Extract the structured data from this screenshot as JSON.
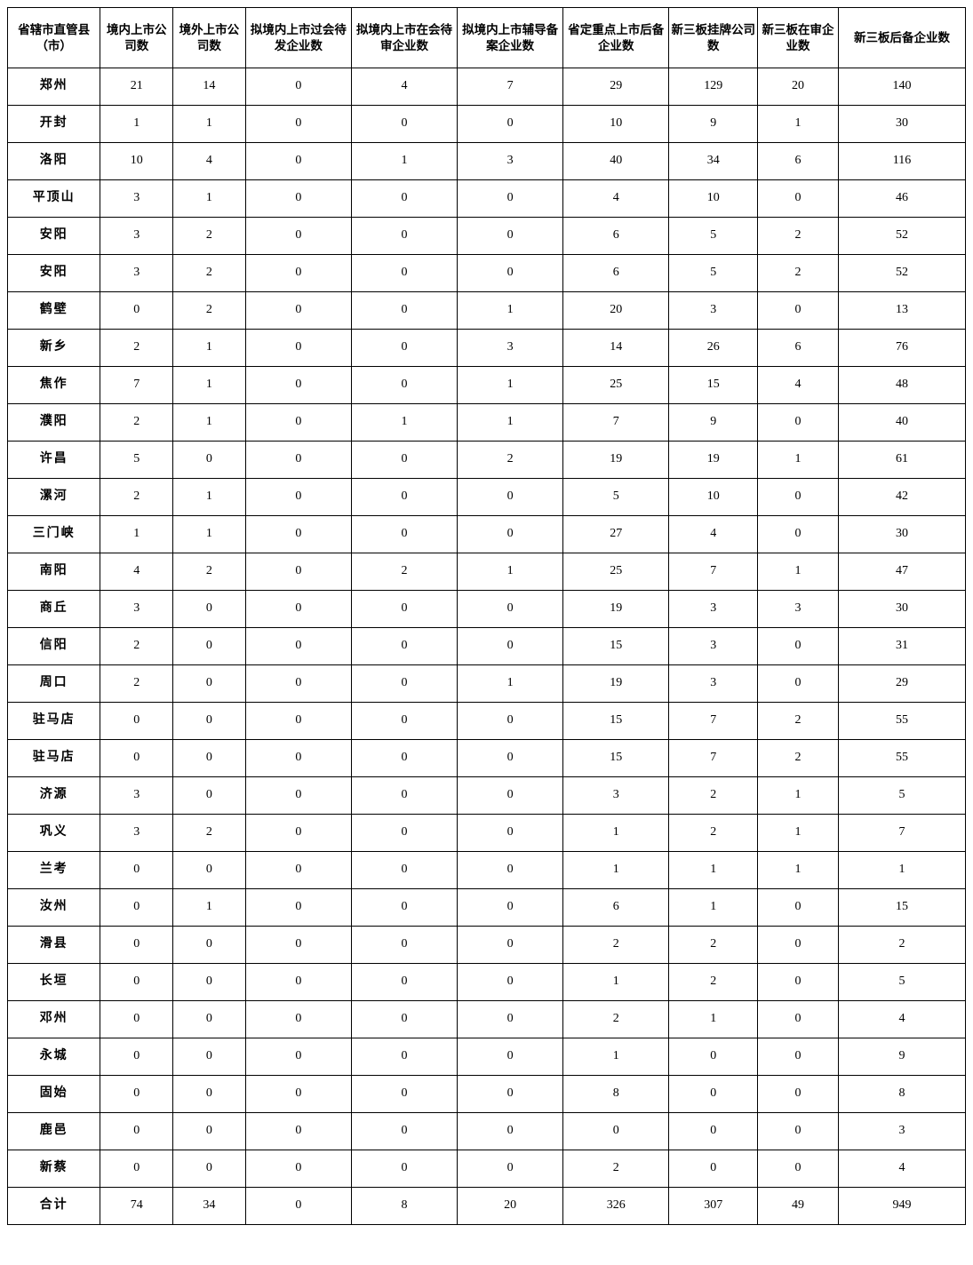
{
  "table": {
    "type": "table",
    "background_color": "#ffffff",
    "border_color": "#000000",
    "text_color": "#000000",
    "header_fontsize": 13.5,
    "cell_fontsize": 14,
    "header_fontweight": "bold",
    "region_fontweight": "bold",
    "columns": [
      {
        "key": "region",
        "label": "省辖市直管县（市）",
        "width_pct": 9.2
      },
      {
        "key": "c1",
        "label": "境内上市公司数",
        "width_pct": 7.2
      },
      {
        "key": "c2",
        "label": "境外上市公司数",
        "width_pct": 7.2
      },
      {
        "key": "c3",
        "label": "拟境内上市过会待发企业数",
        "width_pct": 10.5
      },
      {
        "key": "c4",
        "label": "拟境内上市在会待审企业数",
        "width_pct": 10.5
      },
      {
        "key": "c5",
        "label": "拟境内上市辅导备案企业数",
        "width_pct": 10.5
      },
      {
        "key": "c6",
        "label": "省定重点上市后备企业数",
        "width_pct": 10.5
      },
      {
        "key": "c7",
        "label": "新三板挂牌公司数",
        "width_pct": 8.8
      },
      {
        "key": "c8",
        "label": "新三板在审企业数",
        "width_pct": 8.0
      },
      {
        "key": "c9",
        "label": "新三板后备企业数",
        "width_pct": 12.6
      }
    ],
    "rows": [
      {
        "region": "郑州",
        "c1": "21",
        "c2": "14",
        "c3": "0",
        "c4": "4",
        "c5": "7",
        "c6": "29",
        "c7": "129",
        "c8": "20",
        "c9": "140"
      },
      {
        "region": "开封",
        "c1": "1",
        "c2": "1",
        "c3": "0",
        "c4": "0",
        "c5": "0",
        "c6": "10",
        "c7": "9",
        "c8": "1",
        "c9": "30"
      },
      {
        "region": "洛阳",
        "c1": "10",
        "c2": "4",
        "c3": "0",
        "c4": "1",
        "c5": "3",
        "c6": "40",
        "c7": "34",
        "c8": "6",
        "c9": "116"
      },
      {
        "region": "平顶山",
        "c1": "3",
        "c2": "1",
        "c3": "0",
        "c4": "0",
        "c5": "0",
        "c6": "4",
        "c7": "10",
        "c8": "0",
        "c9": "46"
      },
      {
        "region": "安阳",
        "c1": "3",
        "c2": "2",
        "c3": "0",
        "c4": "0",
        "c5": "0",
        "c6": "6",
        "c7": "5",
        "c8": "2",
        "c9": "52"
      },
      {
        "region": "安阳",
        "c1": "3",
        "c2": "2",
        "c3": "0",
        "c4": "0",
        "c5": "0",
        "c6": "6",
        "c7": "5",
        "c8": "2",
        "c9": "52"
      },
      {
        "region": "鹤壁",
        "c1": "0",
        "c2": "2",
        "c3": "0",
        "c4": "0",
        "c5": "1",
        "c6": "20",
        "c7": "3",
        "c8": "0",
        "c9": "13"
      },
      {
        "region": "新乡",
        "c1": "2",
        "c2": "1",
        "c3": "0",
        "c4": "0",
        "c5": "3",
        "c6": "14",
        "c7": "26",
        "c8": "6",
        "c9": "76"
      },
      {
        "region": "焦作",
        "c1": "7",
        "c2": "1",
        "c3": "0",
        "c4": "0",
        "c5": "1",
        "c6": "25",
        "c7": "15",
        "c8": "4",
        "c9": "48"
      },
      {
        "region": "濮阳",
        "c1": "2",
        "c2": "1",
        "c3": "0",
        "c4": "1",
        "c5": "1",
        "c6": "7",
        "c7": "9",
        "c8": "0",
        "c9": "40"
      },
      {
        "region": "许昌",
        "c1": "5",
        "c2": "0",
        "c3": "0",
        "c4": "0",
        "c5": "2",
        "c6": "19",
        "c7": "19",
        "c8": "1",
        "c9": "61"
      },
      {
        "region": "漯河",
        "c1": "2",
        "c2": "1",
        "c3": "0",
        "c4": "0",
        "c5": "0",
        "c6": "5",
        "c7": "10",
        "c8": "0",
        "c9": "42"
      },
      {
        "region": "三门峡",
        "c1": "1",
        "c2": "1",
        "c3": "0",
        "c4": "0",
        "c5": "0",
        "c6": "27",
        "c7": "4",
        "c8": "0",
        "c9": "30"
      },
      {
        "region": "南阳",
        "c1": "4",
        "c2": "2",
        "c3": "0",
        "c4": "2",
        "c5": "1",
        "c6": "25",
        "c7": "7",
        "c8": "1",
        "c9": "47"
      },
      {
        "region": "商丘",
        "c1": "3",
        "c2": "0",
        "c3": "0",
        "c4": "0",
        "c5": "0",
        "c6": "19",
        "c7": "3",
        "c8": "3",
        "c9": "30"
      },
      {
        "region": "信阳",
        "c1": "2",
        "c2": "0",
        "c3": "0",
        "c4": "0",
        "c5": "0",
        "c6": "15",
        "c7": "3",
        "c8": "0",
        "c9": "31"
      },
      {
        "region": "周口",
        "c1": "2",
        "c2": "0",
        "c3": "0",
        "c4": "0",
        "c5": "1",
        "c6": "19",
        "c7": "3",
        "c8": "0",
        "c9": "29"
      },
      {
        "region": "驻马店",
        "c1": "0",
        "c2": "0",
        "c3": "0",
        "c4": "0",
        "c5": "0",
        "c6": "15",
        "c7": "7",
        "c8": "2",
        "c9": "55"
      },
      {
        "region": "驻马店",
        "c1": "0",
        "c2": "0",
        "c3": "0",
        "c4": "0",
        "c5": "0",
        "c6": "15",
        "c7": "7",
        "c8": "2",
        "c9": "55"
      },
      {
        "region": "济源",
        "c1": "3",
        "c2": "0",
        "c3": "0",
        "c4": "0",
        "c5": "0",
        "c6": "3",
        "c7": "2",
        "c8": "1",
        "c9": "5"
      },
      {
        "region": "巩义",
        "c1": "3",
        "c2": "2",
        "c3": "0",
        "c4": "0",
        "c5": "0",
        "c6": "1",
        "c7": "2",
        "c8": "1",
        "c9": "7"
      },
      {
        "region": "兰考",
        "c1": "0",
        "c2": "0",
        "c3": "0",
        "c4": "0",
        "c5": "0",
        "c6": "1",
        "c7": "1",
        "c8": "1",
        "c9": "1"
      },
      {
        "region": "汝州",
        "c1": "0",
        "c2": "1",
        "c3": "0",
        "c4": "0",
        "c5": "0",
        "c6": "6",
        "c7": "1",
        "c8": "0",
        "c9": "15"
      },
      {
        "region": "滑县",
        "c1": "0",
        "c2": "0",
        "c3": "0",
        "c4": "0",
        "c5": "0",
        "c6": "2",
        "c7": "2",
        "c8": "0",
        "c9": "2"
      },
      {
        "region": "长垣",
        "c1": "0",
        "c2": "0",
        "c3": "0",
        "c4": "0",
        "c5": "0",
        "c6": "1",
        "c7": "2",
        "c8": "0",
        "c9": "5"
      },
      {
        "region": "邓州",
        "c1": "0",
        "c2": "0",
        "c3": "0",
        "c4": "0",
        "c5": "0",
        "c6": "2",
        "c7": "1",
        "c8": "0",
        "c9": "4"
      },
      {
        "region": "永城",
        "c1": "0",
        "c2": "0",
        "c3": "0",
        "c4": "0",
        "c5": "0",
        "c6": "1",
        "c7": "0",
        "c8": "0",
        "c9": "9"
      },
      {
        "region": "固始",
        "c1": "0",
        "c2": "0",
        "c3": "0",
        "c4": "0",
        "c5": "0",
        "c6": "8",
        "c7": "0",
        "c8": "0",
        "c9": "8"
      },
      {
        "region": "鹿邑",
        "c1": "0",
        "c2": "0",
        "c3": "0",
        "c4": "0",
        "c5": "0",
        "c6": "0",
        "c7": "0",
        "c8": "0",
        "c9": "3"
      },
      {
        "region": "新蔡",
        "c1": "0",
        "c2": "0",
        "c3": "0",
        "c4": "0",
        "c5": "0",
        "c6": "2",
        "c7": "0",
        "c8": "0",
        "c9": "4"
      },
      {
        "region": "合计",
        "c1": "74",
        "c2": "34",
        "c3": "0",
        "c4": "8",
        "c5": "20",
        "c6": "326",
        "c7": "307",
        "c8": "49",
        "c9": "949"
      }
    ]
  }
}
